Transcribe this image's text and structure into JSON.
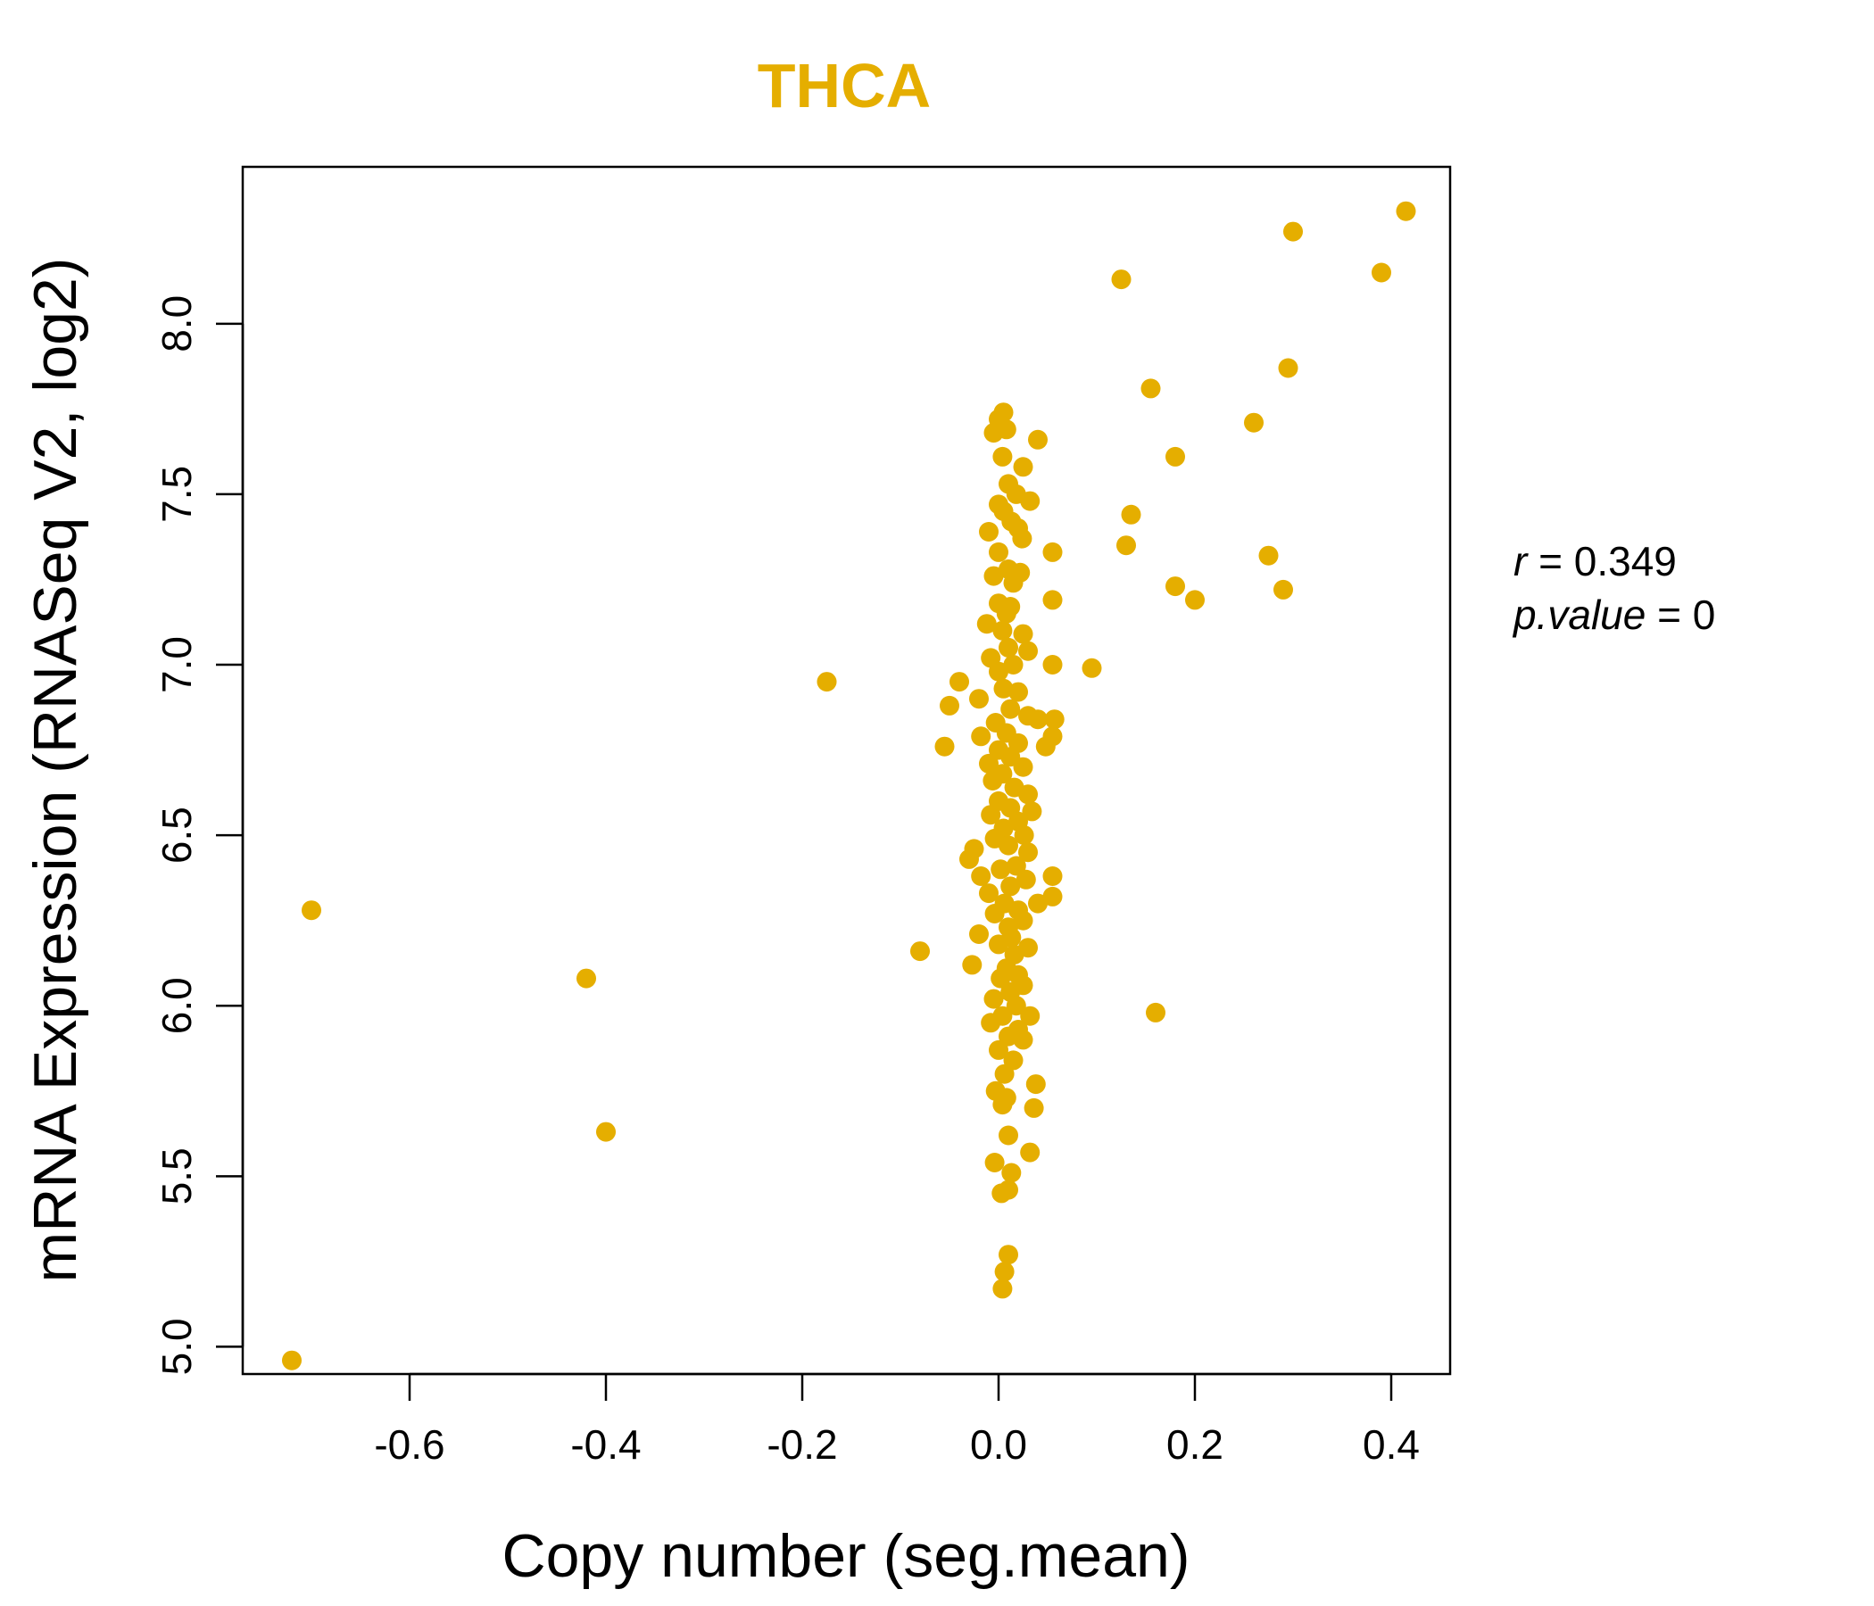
{
  "chart_data": {
    "type": "scatter",
    "title": "THCA",
    "xlabel": "Copy number (seg.mean)",
    "ylabel": "mRNA Expression (RNASeq V2, log2)",
    "xlim": [
      -0.77,
      0.46
    ],
    "ylim": [
      4.92,
      8.46
    ],
    "x_ticks": [
      -0.6,
      -0.4,
      -0.2,
      0.0,
      0.2,
      0.4
    ],
    "x_tick_labels": [
      "-0.6",
      "-0.4",
      "-0.2",
      "0.0",
      "0.2",
      "0.4"
    ],
    "y_ticks": [
      5.0,
      5.5,
      6.0,
      6.5,
      7.0,
      7.5,
      8.0
    ],
    "y_tick_labels": [
      "5.0",
      "5.5",
      "6.0",
      "6.5",
      "7.0",
      "7.5",
      "8.0"
    ],
    "grid": false,
    "colors": {
      "points": "#E5AE00",
      "title": "#E5AE00",
      "axes": "#000000"
    },
    "annotations": {
      "r_label": "r",
      "r_value": "0.349",
      "p_label": "p.value",
      "p_value": "0"
    },
    "points": [
      [
        0.415,
        8.33
      ],
      [
        0.3,
        8.27
      ],
      [
        0.39,
        8.15
      ],
      [
        0.125,
        8.13
      ],
      [
        0.295,
        7.87
      ],
      [
        0.155,
        7.81
      ],
      [
        0.26,
        7.71
      ],
      [
        0.18,
        7.61
      ],
      [
        0.135,
        7.44
      ],
      [
        0.13,
        7.35
      ],
      [
        0.275,
        7.32
      ],
      [
        0.18,
        7.23
      ],
      [
        0.2,
        7.19
      ],
      [
        0.29,
        7.22
      ],
      [
        0.095,
        6.99
      ],
      [
        0.16,
        5.98
      ],
      [
        -0.175,
        6.95
      ],
      [
        -0.08,
        6.16
      ],
      [
        -0.42,
        6.08
      ],
      [
        -0.4,
        5.63
      ],
      [
        -0.7,
        6.28
      ],
      [
        -0.72,
        4.96
      ],
      [
        0.005,
        7.74
      ],
      [
        -0.005,
        7.68
      ],
      [
        0.0,
        7.72
      ],
      [
        0.008,
        7.69
      ],
      [
        0.04,
        7.66
      ],
      [
        0.004,
        7.61
      ],
      [
        0.025,
        7.58
      ],
      [
        0.01,
        7.53
      ],
      [
        0.018,
        7.5
      ],
      [
        0.032,
        7.48
      ],
      [
        0.0,
        7.47
      ],
      [
        0.005,
        7.45
      ],
      [
        0.013,
        7.42
      ],
      [
        0.02,
        7.4
      ],
      [
        -0.01,
        7.39
      ],
      [
        0.024,
        7.37
      ],
      [
        0.0,
        7.33
      ],
      [
        0.055,
        7.33
      ],
      [
        0.01,
        7.28
      ],
      [
        0.022,
        7.27
      ],
      [
        -0.005,
        7.26
      ],
      [
        0.015,
        7.24
      ],
      [
        0.055,
        7.19
      ],
      [
        0.0,
        7.18
      ],
      [
        0.012,
        7.17
      ],
      [
        0.008,
        7.15
      ],
      [
        -0.012,
        7.12
      ],
      [
        0.004,
        7.1
      ],
      [
        0.025,
        7.09
      ],
      [
        0.03,
        7.04
      ],
      [
        0.01,
        7.05
      ],
      [
        -0.008,
        7.02
      ],
      [
        0.015,
        7.0
      ],
      [
        0.055,
        7.0
      ],
      [
        0.0,
        6.98
      ],
      [
        -0.04,
        6.95
      ],
      [
        0.005,
        6.93
      ],
      [
        -0.02,
        6.9
      ],
      [
        0.02,
        6.92
      ],
      [
        -0.05,
        6.88
      ],
      [
        0.012,
        6.87
      ],
      [
        0.03,
        6.85
      ],
      [
        0.04,
        6.84
      ],
      [
        0.057,
        6.84
      ],
      [
        -0.003,
        6.83
      ],
      [
        0.008,
        6.8
      ],
      [
        -0.018,
        6.79
      ],
      [
        0.055,
        6.79
      ],
      [
        0.02,
        6.77
      ],
      [
        0.048,
        6.76
      ],
      [
        -0.055,
        6.76
      ],
      [
        0.0,
        6.75
      ],
      [
        0.012,
        6.73
      ],
      [
        -0.01,
        6.71
      ],
      [
        0.025,
        6.7
      ],
      [
        0.004,
        6.68
      ],
      [
        -0.006,
        6.66
      ],
      [
        0.016,
        6.64
      ],
      [
        0.03,
        6.62
      ],
      [
        0.0,
        6.6
      ],
      [
        0.012,
        6.58
      ],
      [
        0.034,
        6.57
      ],
      [
        -0.008,
        6.56
      ],
      [
        0.02,
        6.54
      ],
      [
        0.005,
        6.52
      ],
      [
        0.026,
        6.5
      ],
      [
        -0.004,
        6.49
      ],
      [
        0.01,
        6.47
      ],
      [
        -0.025,
        6.46
      ],
      [
        0.03,
        6.45
      ],
      [
        -0.03,
        6.43
      ],
      [
        0.018,
        6.41
      ],
      [
        0.002,
        6.4
      ],
      [
        0.055,
        6.38
      ],
      [
        -0.018,
        6.38
      ],
      [
        0.028,
        6.37
      ],
      [
        0.012,
        6.35
      ],
      [
        -0.01,
        6.33
      ],
      [
        0.055,
        6.32
      ],
      [
        0.04,
        6.3
      ],
      [
        0.006,
        6.3
      ],
      [
        0.02,
        6.28
      ],
      [
        -0.004,
        6.27
      ],
      [
        0.025,
        6.25
      ],
      [
        0.01,
        6.23
      ],
      [
        -0.02,
        6.21
      ],
      [
        0.013,
        6.2
      ],
      [
        0.0,
        6.18
      ],
      [
        0.03,
        6.17
      ],
      [
        0.016,
        6.15
      ],
      [
        -0.027,
        6.12
      ],
      [
        0.008,
        6.11
      ],
      [
        0.02,
        6.09
      ],
      [
        0.002,
        6.08
      ],
      [
        0.025,
        6.06
      ],
      [
        0.012,
        6.04
      ],
      [
        -0.005,
        6.02
      ],
      [
        0.018,
        6.0
      ],
      [
        0.032,
        5.97
      ],
      [
        0.004,
        5.97
      ],
      [
        -0.008,
        5.95
      ],
      [
        0.02,
        5.93
      ],
      [
        0.01,
        5.91
      ],
      [
        0.025,
        5.9
      ],
      [
        0.0,
        5.87
      ],
      [
        0.015,
        5.84
      ],
      [
        0.006,
        5.8
      ],
      [
        0.038,
        5.77
      ],
      [
        -0.003,
        5.75
      ],
      [
        0.008,
        5.73
      ],
      [
        0.004,
        5.71
      ],
      [
        0.036,
        5.7
      ],
      [
        0.01,
        5.62
      ],
      [
        0.032,
        5.57
      ],
      [
        -0.004,
        5.54
      ],
      [
        0.013,
        5.51
      ],
      [
        0.01,
        5.46
      ],
      [
        0.003,
        5.45
      ],
      [
        0.01,
        5.27
      ],
      [
        0.006,
        5.22
      ],
      [
        0.004,
        5.17
      ]
    ]
  }
}
